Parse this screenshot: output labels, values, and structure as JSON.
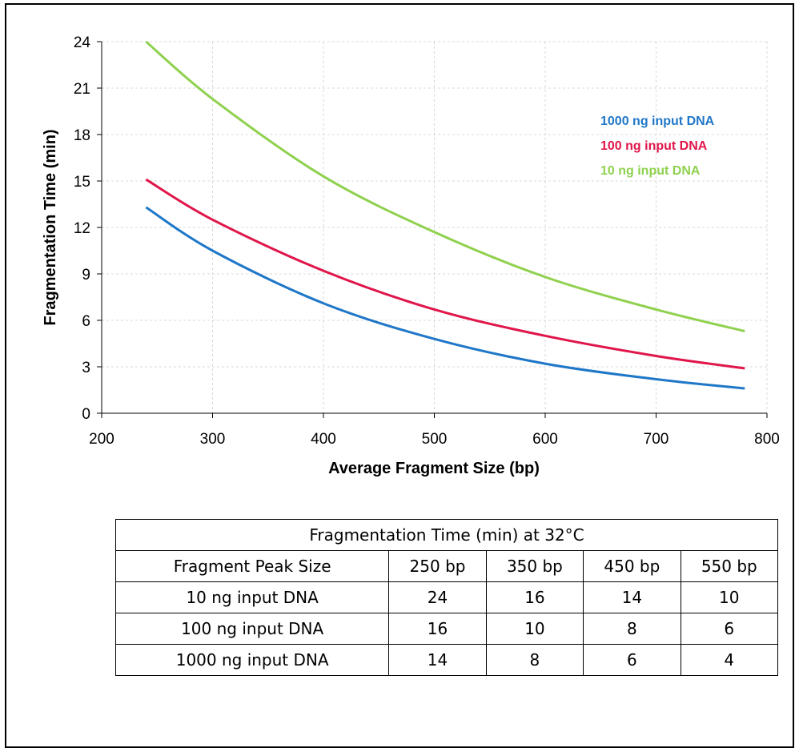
{
  "chart_data": {
    "type": "line",
    "title": "",
    "xlabel": "Average Fragment Size (bp)",
    "ylabel": "Fragmentation Time (min)",
    "xlim": [
      200,
      800
    ],
    "ylim": [
      0,
      24
    ],
    "xticks": [
      200,
      300,
      400,
      500,
      600,
      700,
      800
    ],
    "yticks": [
      0,
      3,
      6,
      9,
      12,
      15,
      18,
      21,
      24
    ],
    "grid": "dashed",
    "legend_placement": "top-right",
    "series": [
      {
        "name": "1000 ng input DNA",
        "color": "#1f77c8",
        "x": [
          240,
          300,
          400,
          500,
          600,
          700,
          780
        ],
        "y": [
          13.3,
          10.5,
          7.1,
          4.8,
          3.2,
          2.2,
          1.6
        ]
      },
      {
        "name": "100 ng input DNA",
        "color": "#e0164a",
        "x": [
          240,
          300,
          400,
          500,
          600,
          700,
          780
        ],
        "y": [
          15.1,
          12.5,
          9.2,
          6.7,
          5.0,
          3.7,
          2.9
        ]
      },
      {
        "name": "10 ng input DNA",
        "color": "#8fd14f",
        "x": [
          240,
          300,
          400,
          500,
          600,
          700,
          780
        ],
        "y": [
          24.0,
          20.3,
          15.3,
          11.7,
          8.8,
          6.7,
          5.3
        ]
      }
    ]
  },
  "table": {
    "title": "Fragmentation Time (min) at 32°C",
    "header": [
      "Fragment Peak Size",
      "250 bp",
      "350 bp",
      "450 bp",
      "550 bp"
    ],
    "rows": [
      [
        "10 ng input DNA",
        "24",
        "16",
        "14",
        "10"
      ],
      [
        "100 ng input DNA",
        "16",
        "10",
        "8",
        "6"
      ],
      [
        "1000 ng input DNA",
        "14",
        "8",
        "6",
        "4"
      ]
    ]
  }
}
